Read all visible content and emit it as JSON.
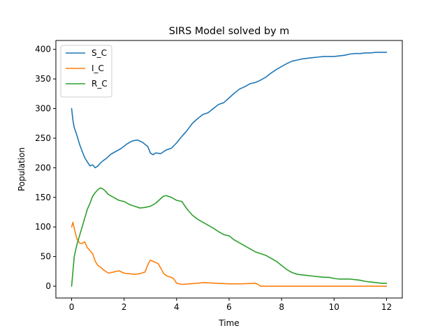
{
  "chart_data": {
    "type": "line",
    "title": "SIRS Model solved by m",
    "xlabel": "Time",
    "ylabel": "Population",
    "xlim": [
      -0.6,
      12.6
    ],
    "ylim": [
      -20,
      415
    ],
    "xticks": [
      0,
      2,
      4,
      6,
      8,
      10,
      12
    ],
    "yticks": [
      0,
      50,
      100,
      150,
      200,
      250,
      300,
      350,
      400
    ],
    "grid": false,
    "legend_position": "top-left",
    "series": [
      {
        "name": "S_C",
        "color": "#1f77b4",
        "x": [
          0,
          0.05,
          0.1,
          0.2,
          0.3,
          0.4,
          0.5,
          0.6,
          0.7,
          0.8,
          0.9,
          1.0,
          1.1,
          1.2,
          1.3,
          1.5,
          1.7,
          1.9,
          2.1,
          2.3,
          2.5,
          2.7,
          2.9,
          3.0,
          3.1,
          3.2,
          3.4,
          3.6,
          3.8,
          4.0,
          4.2,
          4.4,
          4.6,
          4.8,
          5.0,
          5.2,
          5.4,
          5.6,
          5.8,
          6.0,
          6.2,
          6.4,
          6.6,
          6.8,
          7.0,
          7.2,
          7.4,
          7.6,
          7.8,
          8.0,
          8.2,
          8.4,
          8.6,
          8.8,
          9.0,
          9.2,
          9.4,
          9.6,
          9.8,
          10.0,
          10.2,
          10.4,
          10.6,
          10.8,
          11.0,
          11.2,
          11.4,
          11.6,
          11.8,
          12.0
        ],
        "y": [
          300,
          280,
          268,
          255,
          240,
          228,
          217,
          210,
          203,
          205,
          200,
          203,
          208,
          212,
          215,
          223,
          228,
          233,
          240,
          245,
          247,
          243,
          236,
          225,
          222,
          225,
          224,
          230,
          233,
          242,
          253,
          263,
          275,
          283,
          290,
          293,
          300,
          307,
          310,
          318,
          326,
          333,
          337,
          342,
          344,
          348,
          353,
          360,
          366,
          371,
          376,
          380,
          382,
          384,
          385,
          386,
          387,
          388,
          388,
          388,
          389,
          390,
          392,
          393,
          393,
          394,
          394,
          395,
          395,
          395
        ]
      },
      {
        "name": "I_C",
        "color": "#ff7f0e",
        "x": [
          0,
          0.05,
          0.1,
          0.2,
          0.3,
          0.4,
          0.5,
          0.6,
          0.7,
          0.8,
          0.9,
          1.0,
          1.1,
          1.2,
          1.3,
          1.4,
          1.6,
          1.8,
          2.0,
          2.2,
          2.4,
          2.6,
          2.8,
          2.9,
          3.0,
          3.1,
          3.2,
          3.3,
          3.4,
          3.5,
          3.6,
          3.7,
          3.8,
          3.9,
          4.0,
          4.2,
          4.5,
          4.8,
          5.0,
          5.5,
          6.0,
          6.5,
          7.0,
          7.1,
          7.2,
          8.0,
          9.0,
          10.0,
          11.0,
          12.0
        ],
        "y": [
          100,
          108,
          98,
          80,
          73,
          72,
          75,
          65,
          60,
          55,
          42,
          35,
          32,
          28,
          25,
          22,
          24,
          26,
          22,
          21,
          20,
          21,
          24,
          36,
          44,
          42,
          40,
          38,
          30,
          22,
          18,
          16,
          15,
          12,
          5,
          3,
          4,
          5,
          6,
          5,
          4,
          4,
          5,
          3,
          0,
          0,
          0,
          0,
          0,
          0
        ]
      },
      {
        "name": "R_C",
        "color": "#2ca02c",
        "x": [
          0,
          0.05,
          0.1,
          0.2,
          0.3,
          0.4,
          0.5,
          0.6,
          0.7,
          0.8,
          0.9,
          1.0,
          1.1,
          1.2,
          1.3,
          1.4,
          1.6,
          1.8,
          2.0,
          2.2,
          2.4,
          2.6,
          2.8,
          3.0,
          3.2,
          3.4,
          3.5,
          3.6,
          3.8,
          4.0,
          4.2,
          4.4,
          4.6,
          4.8,
          5.0,
          5.2,
          5.4,
          5.6,
          5.8,
          6.0,
          6.2,
          6.4,
          6.6,
          6.8,
          7.0,
          7.2,
          7.4,
          7.6,
          7.8,
          8.0,
          8.2,
          8.4,
          8.6,
          8.8,
          9.0,
          9.2,
          9.4,
          9.6,
          9.8,
          10.0,
          10.2,
          10.4,
          10.6,
          10.8,
          11.0,
          11.2,
          11.4,
          11.6,
          11.8,
          12.0
        ],
        "y": [
          0,
          25,
          50,
          70,
          85,
          100,
          115,
          130,
          140,
          152,
          158,
          163,
          166,
          164,
          160,
          155,
          150,
          145,
          143,
          138,
          135,
          132,
          133,
          135,
          140,
          148,
          152,
          153,
          150,
          145,
          143,
          130,
          120,
          113,
          108,
          103,
          98,
          92,
          87,
          85,
          78,
          73,
          68,
          63,
          58,
          55,
          52,
          47,
          42,
          35,
          28,
          23,
          20,
          19,
          18,
          17,
          16,
          15,
          15,
          13,
          12,
          12,
          12,
          11,
          10,
          8,
          7,
          6,
          5,
          5
        ]
      }
    ]
  }
}
